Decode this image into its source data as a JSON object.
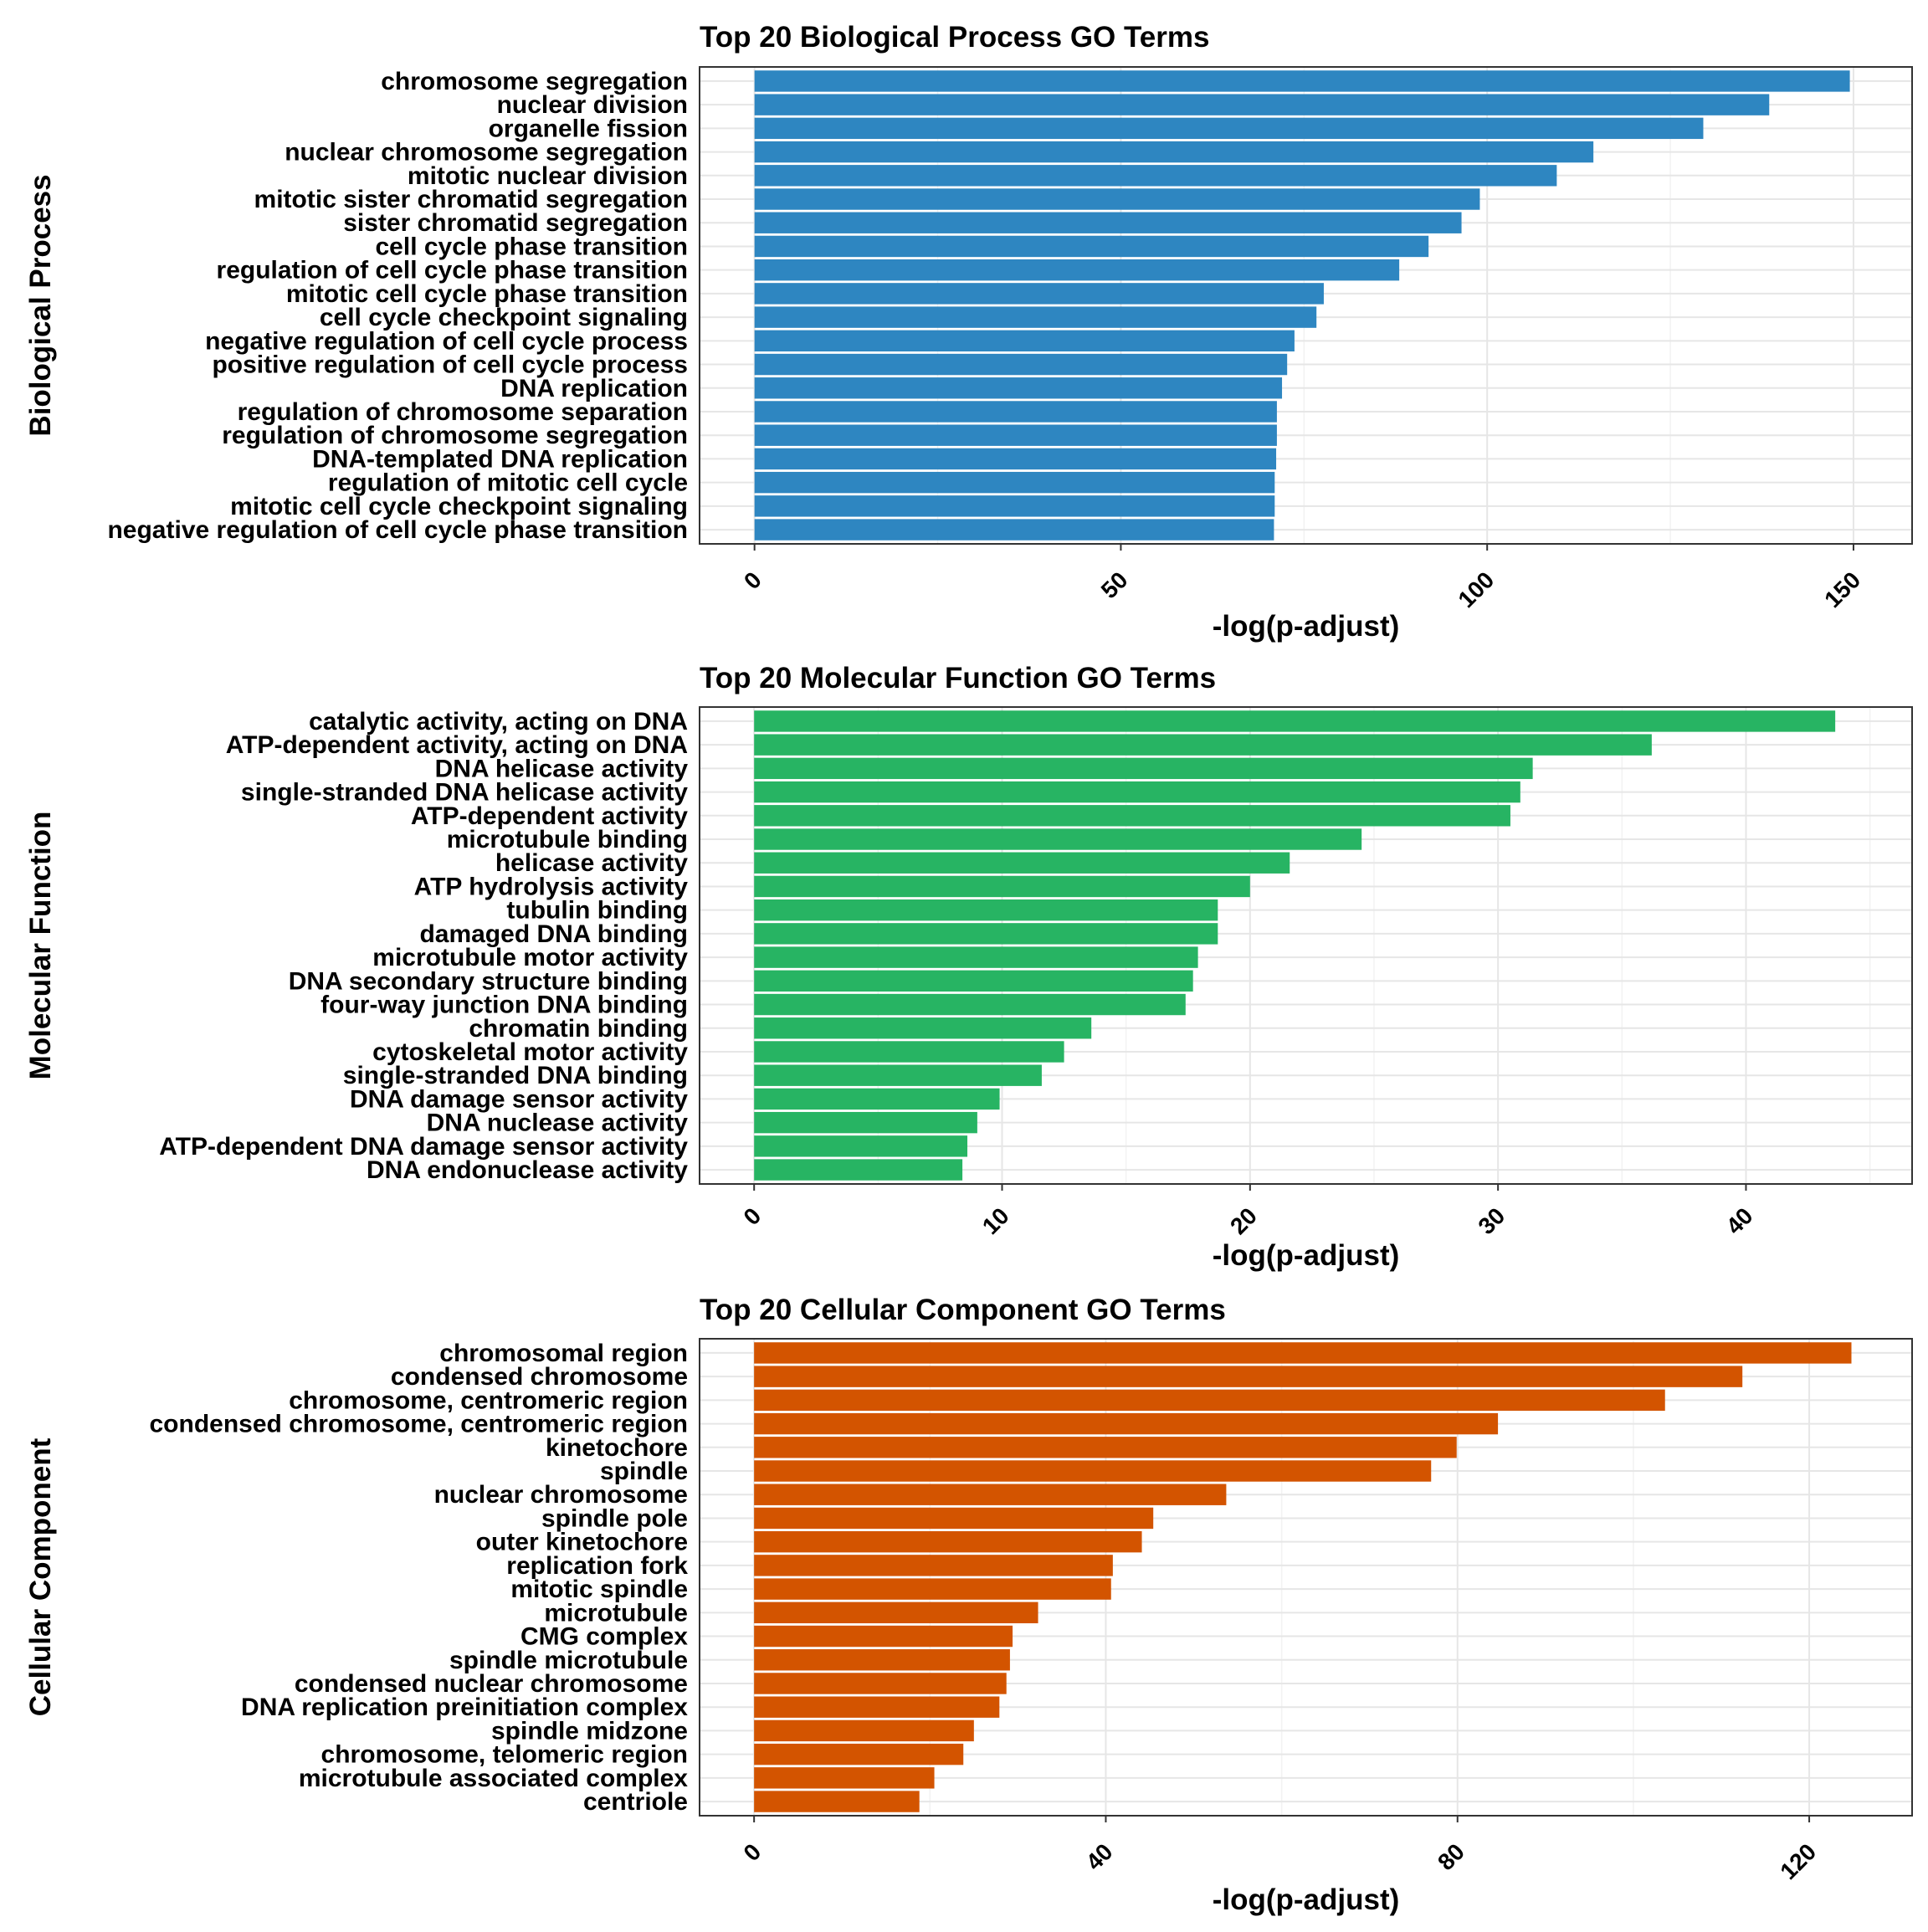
{
  "chart_data": [
    {
      "type": "bar",
      "orientation": "horizontal",
      "title": "Top 20 Biological Process GO Terms",
      "xlabel": "-log(p-adjust)",
      "ylabel": "Biological Process",
      "xlim": [
        -7.5,
        158
      ],
      "xticks": [
        0,
        50,
        100,
        150
      ],
      "grid": true,
      "color": "#2E86C1",
      "categories": [
        "chromosome segregation",
        "nuclear division",
        "organelle fission",
        "nuclear chromosome segregation",
        "mitotic nuclear division",
        "mitotic sister chromatid segregation",
        "sister chromatid segregation",
        "cell cycle phase transition",
        "regulation of cell cycle phase transition",
        "mitotic cell cycle phase transition",
        "cell cycle checkpoint signaling",
        "negative regulation of cell cycle process",
        "positive regulation of cell cycle process",
        "DNA replication",
        "regulation of chromosome separation",
        "regulation of chromosome segregation",
        "DNA-templated DNA replication",
        "regulation of mitotic cell cycle",
        "mitotic cell cycle checkpoint signaling",
        "negative regulation of cell cycle phase transition"
      ],
      "values": [
        149.5,
        138.5,
        129.5,
        114.5,
        109.5,
        99,
        96.5,
        92,
        88,
        77.7,
        76.7,
        73.7,
        72.7,
        72,
        71.3,
        71.3,
        71.2,
        71,
        71,
        70.9
      ]
    },
    {
      "type": "bar",
      "orientation": "horizontal",
      "title": "Top 20 Molecular Function GO Terms",
      "xlabel": "-log(p-adjust)",
      "ylabel": "Molecular Function",
      "xlim": [
        -2.2,
        46.7
      ],
      "xticks": [
        0,
        10,
        20,
        30,
        40
      ],
      "grid": true,
      "color": "#27B463",
      "categories": [
        "catalytic activity, acting on DNA",
        "ATP-dependent activity, acting on DNA",
        "DNA helicase activity",
        "single-stranded DNA helicase activity",
        "ATP-dependent activity",
        "microtubule binding",
        "helicase activity",
        "ATP hydrolysis activity",
        "tubulin binding",
        "damaged DNA binding",
        "microtubule motor activity",
        "DNA secondary structure binding",
        "four-way junction DNA binding",
        "chromatin binding",
        "cytoskeletal motor activity",
        "single-stranded DNA binding",
        "DNA damage sensor activity",
        "DNA nuclease activity",
        "ATP-dependent DNA damage sensor activity",
        "DNA endonuclease activity"
      ],
      "values": [
        43.6,
        36.2,
        31.4,
        30.9,
        30.5,
        24.5,
        21.6,
        20,
        18.7,
        18.7,
        17.9,
        17.7,
        17.4,
        13.6,
        12.5,
        11.6,
        9.9,
        9,
        8.6,
        8.4
      ]
    },
    {
      "type": "bar",
      "orientation": "horizontal",
      "title": "Top 20 Cellular Component GO Terms",
      "xlabel": "-log(p-adjust)",
      "ylabel": "Cellular Component",
      "xlim": [
        -6.2,
        131.7
      ],
      "xticks": [
        0,
        40,
        80,
        120
      ],
      "grid": true,
      "color": "#D35400",
      "categories": [
        "chromosomal region",
        "condensed chromosome",
        "chromosome, centromeric region",
        "condensed chromosome, centromeric region",
        "kinetochore",
        "spindle",
        "nuclear chromosome",
        "spindle pole",
        "outer kinetochore",
        "replication fork",
        "mitotic spindle",
        "microtubule",
        "CMG complex",
        "spindle microtubule",
        "condensed nuclear chromosome",
        "DNA replication preinitiation complex",
        "spindle midzone",
        "chromosome, telomeric region",
        "microtubule associated complex",
        "centriole"
      ],
      "values": [
        124.8,
        112.4,
        103.6,
        84.6,
        79.9,
        77,
        53.7,
        45.4,
        44.1,
        40.8,
        40.6,
        32.3,
        29.4,
        29.1,
        28.7,
        27.9,
        25,
        23.8,
        20.5,
        18.8
      ]
    }
  ]
}
